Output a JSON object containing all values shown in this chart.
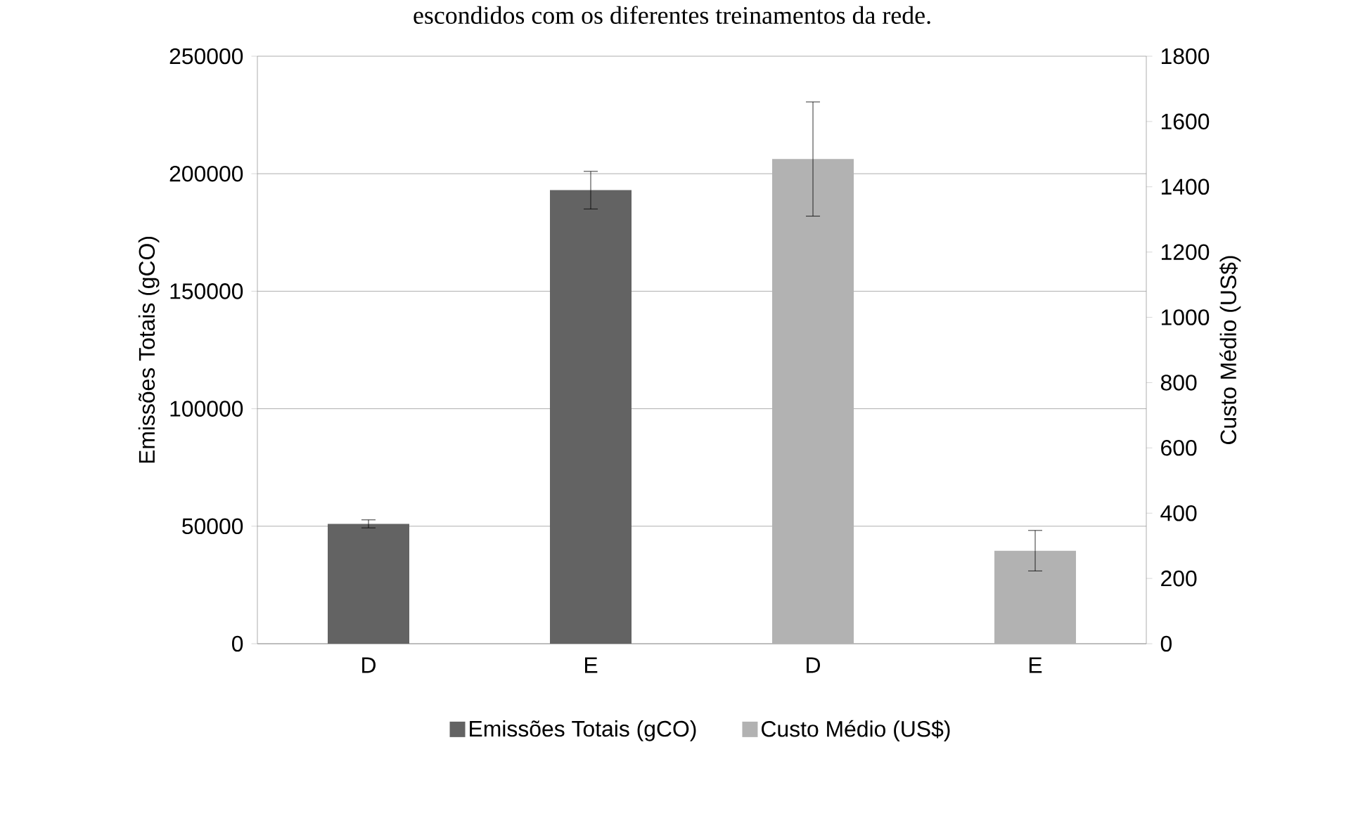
{
  "chart_data": {
    "type": "bar",
    "annotations": [
      "escondidos com os diferentes treinamentos da rede."
    ],
    "ylabel": "Emissões Totais (gCO)",
    "y2label": "Custo Médio (US$)",
    "categories": [
      "D",
      "E",
      "D",
      "E"
    ],
    "series": [
      {
        "name": "Emissões Totais (gCO)",
        "color": "#636363",
        "values": [
          51000,
          193000,
          null,
          null
        ],
        "errors": [
          1700,
          8000,
          null,
          null
        ]
      },
      {
        "name": "Custo Médio (US$)",
        "color": "#b2b2b2",
        "axis": "y2",
        "values": [
          null,
          null,
          1485,
          285
        ],
        "errors": [
          null,
          null,
          175,
          62
        ]
      }
    ],
    "ylim": [
      0,
      250000
    ],
    "yticks": [
      0,
      50000,
      100000,
      150000,
      200000,
      250000
    ],
    "y2lim": [
      0,
      1800
    ],
    "y2ticks": [
      0,
      200,
      400,
      600,
      800,
      1000,
      1200,
      1400,
      1600,
      1800
    ],
    "grid": "y",
    "legend": "bottom"
  }
}
